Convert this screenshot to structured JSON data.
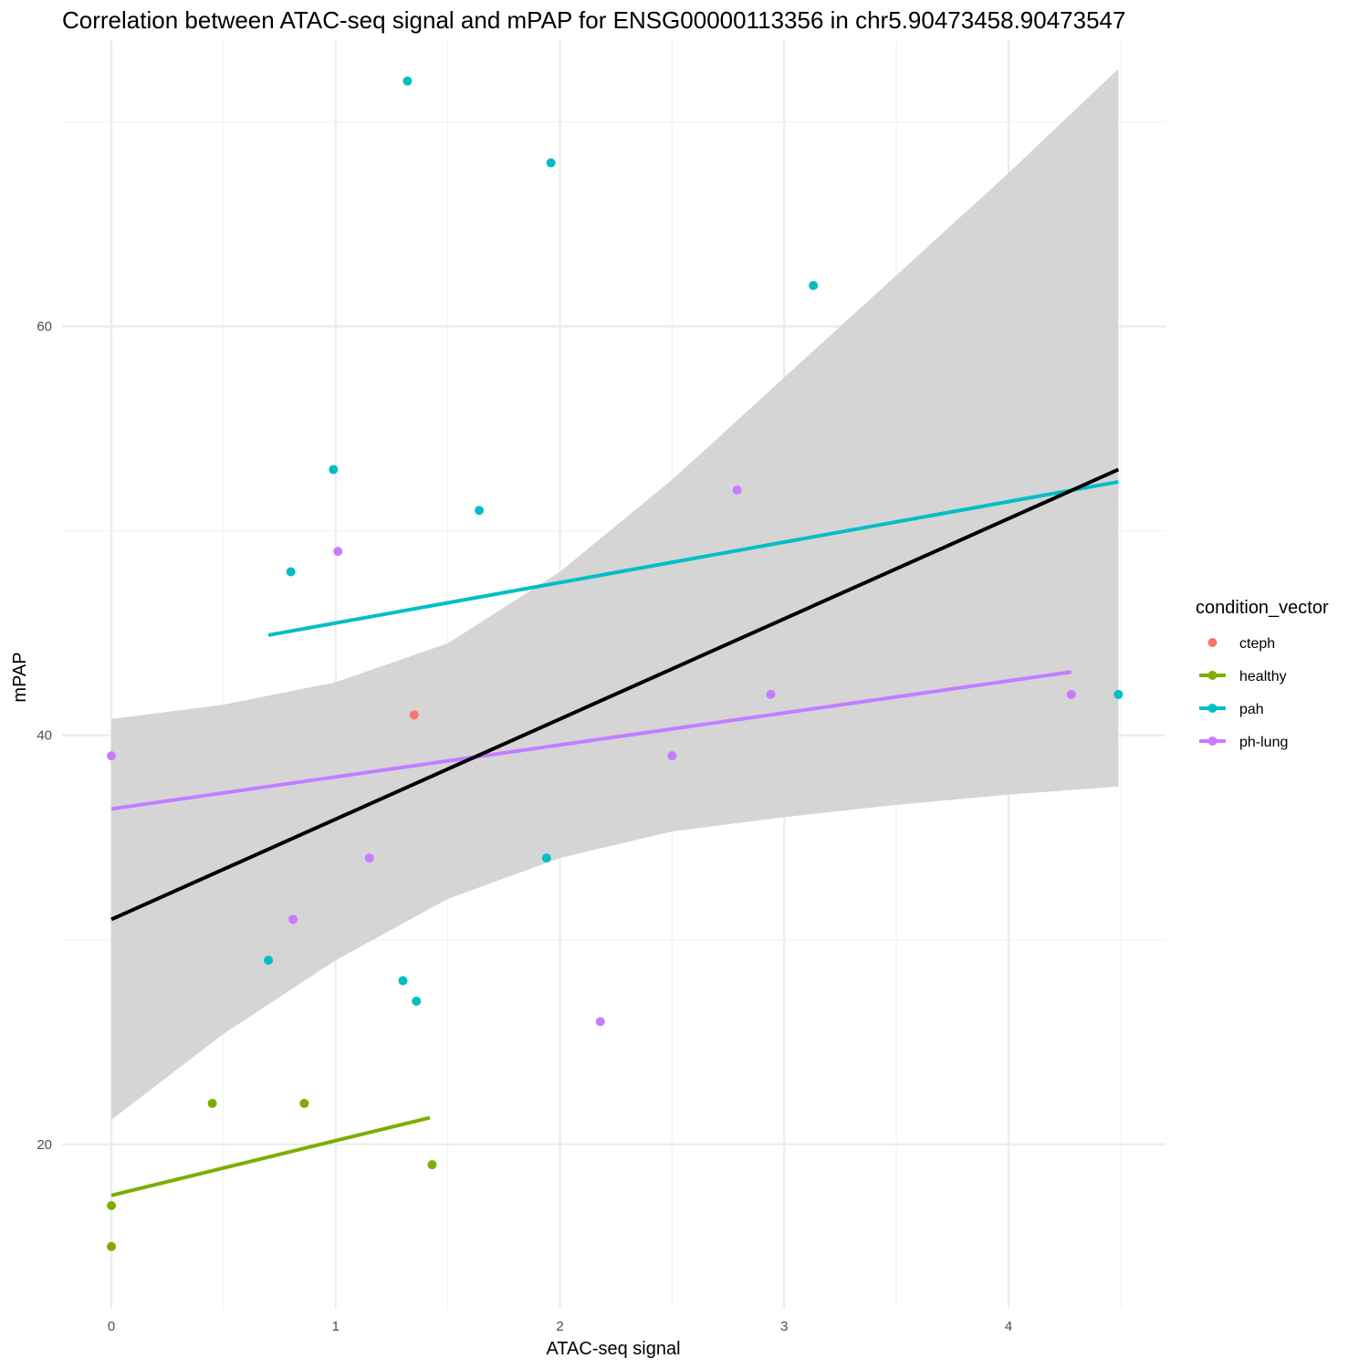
{
  "chart_data": {
    "type": "scatter",
    "title": "Correlation between ATAC-seq signal and mPAP for ENSG00000113356 in chr5.90473458.90473547",
    "xlabel": "ATAC-seq signal",
    "ylabel": "mPAP",
    "xlim": [
      -0.22,
      4.7
    ],
    "ylim": [
      12,
      74
    ],
    "x_ticks": [
      0,
      1,
      2,
      3,
      4
    ],
    "x_tick_labels": [
      "0",
      "1",
      "2",
      "3",
      "4"
    ],
    "y_ticks": [
      20,
      40,
      60
    ],
    "y_tick_labels": [
      "20",
      "40",
      "60"
    ],
    "grid": true,
    "legend": {
      "title": "condition_vector",
      "placement": "right",
      "entries": [
        "cteph",
        "healthy",
        "pah",
        "ph-lung"
      ]
    },
    "colors": {
      "cteph": "#F8766D",
      "healthy": "#7CAE00",
      "pah": "#00BFC4",
      "ph-lung": "#C77CFF",
      "overall_fit": "#000000",
      "ribbon": "#d3d3d3"
    },
    "series": [
      {
        "name": "cteph",
        "points": [
          [
            1.35,
            41
          ]
        ]
      },
      {
        "name": "healthy",
        "points": [
          [
            0.0,
            17
          ],
          [
            0.0,
            15
          ],
          [
            0.45,
            22
          ],
          [
            0.86,
            22
          ],
          [
            1.43,
            19
          ]
        ]
      },
      {
        "name": "pah",
        "points": [
          [
            1.32,
            72
          ],
          [
            1.96,
            68
          ],
          [
            3.13,
            62
          ],
          [
            0.99,
            53
          ],
          [
            1.64,
            51
          ],
          [
            0.8,
            48
          ],
          [
            1.94,
            34
          ],
          [
            0.7,
            29
          ],
          [
            1.3,
            28
          ],
          [
            1.36,
            27
          ],
          [
            4.49,
            42
          ]
        ]
      },
      {
        "name": "ph-lung",
        "points": [
          [
            0.0,
            39
          ],
          [
            1.01,
            49
          ],
          [
            2.79,
            52
          ],
          [
            2.94,
            42
          ],
          [
            4.28,
            42
          ],
          [
            2.5,
            39
          ],
          [
            1.15,
            34
          ],
          [
            0.81,
            31
          ],
          [
            2.18,
            26
          ]
        ]
      }
    ],
    "group_fits": [
      {
        "name": "healthy",
        "x": [
          0.0,
          1.42
        ],
        "y": [
          17.5,
          21.3
        ]
      },
      {
        "name": "pah",
        "x": [
          0.7,
          4.49
        ],
        "y": [
          44.9,
          52.4
        ]
      },
      {
        "name": "ph-lung",
        "x": [
          0.0,
          4.28
        ],
        "y": [
          36.4,
          43.1
        ]
      }
    ],
    "overall_fit": {
      "x": [
        0.0,
        4.49
      ],
      "y": [
        31.0,
        53.0
      ],
      "ci_x": [
        0.0,
        0.5,
        1.0,
        1.5,
        2.0,
        2.5,
        3.0,
        3.5,
        4.0,
        4.49
      ],
      "ci_lower": [
        21.2,
        25.4,
        29.0,
        32.0,
        34.0,
        35.3,
        36.0,
        36.6,
        37.1,
        37.5
      ],
      "ci_upper": [
        40.8,
        41.5,
        42.6,
        44.5,
        48.0,
        52.5,
        57.5,
        62.5,
        67.5,
        72.6
      ]
    }
  }
}
